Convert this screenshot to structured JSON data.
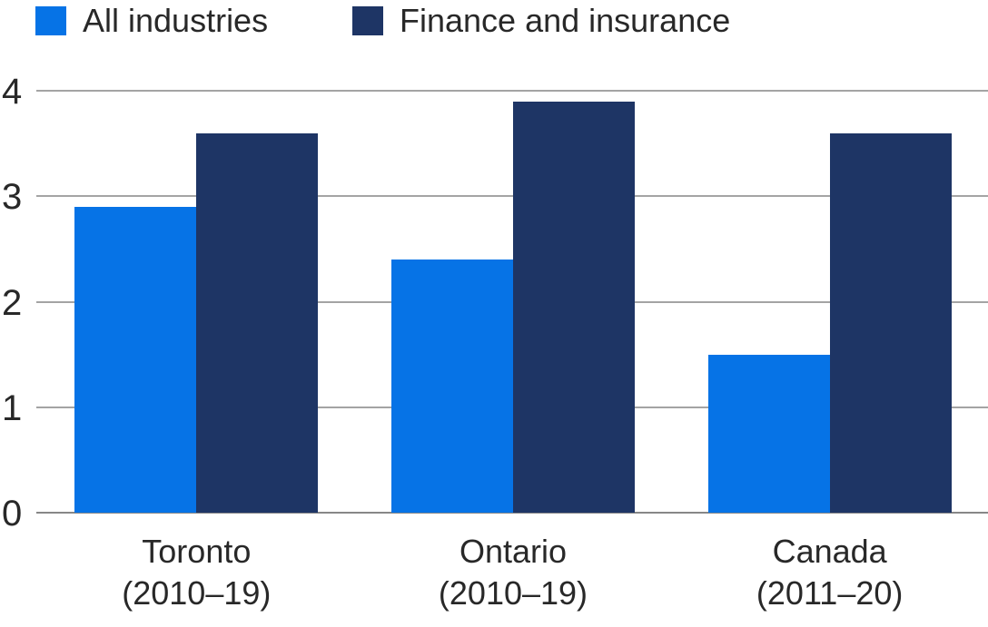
{
  "page": {
    "background": "#ffffff"
  },
  "legend": {
    "position": "top-left",
    "items": [
      {
        "label": "All industries",
        "color": "#0673e6"
      },
      {
        "label": "Finance and insurance",
        "color": "#1e3565"
      }
    ]
  },
  "chart_data": {
    "type": "bar",
    "title": "",
    "xlabel": "",
    "ylabel": "",
    "categories": [
      "Toronto (2010–19)",
      "Ontario (2010–19)",
      "Canada (2011–20)"
    ],
    "category_label_lines": [
      [
        "Toronto",
        "(2010–19)"
      ],
      [
        "Ontario",
        "(2010–19)"
      ],
      [
        "Canada",
        "(2011–20)"
      ]
    ],
    "series": [
      {
        "name": "All industries",
        "color": "#0673e6",
        "values": [
          2.9,
          2.4,
          1.5
        ]
      },
      {
        "name": "Finance and insurance",
        "color": "#1e3565",
        "values": [
          3.6,
          3.9,
          3.6
        ]
      }
    ],
    "ylim": [
      0,
      4
    ],
    "yticks": [
      0,
      1,
      2,
      3,
      4
    ],
    "grid": true,
    "legend_position": "top-left",
    "styles": {
      "text_color": "#282828",
      "gridline_color": "#a4a4a4",
      "baseline_color": "#878787"
    }
  }
}
